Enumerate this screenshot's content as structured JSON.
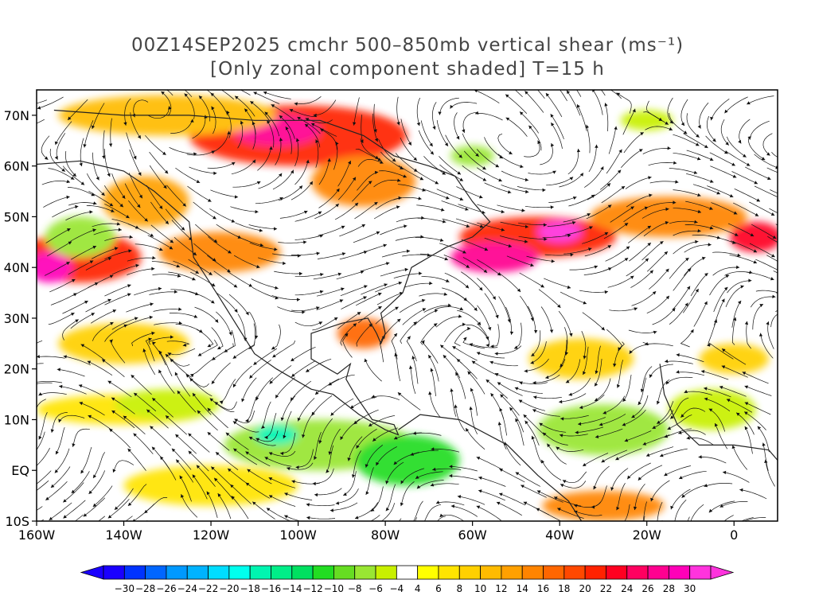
{
  "title_line1": "00Z14SEP2025 cmchr 500–850mb vertical shear (ms⁻¹)",
  "title_line2": "[Only zonal component shaded] T=15 h",
  "map": {
    "lon_range": [
      -160,
      10
    ],
    "lat_range": [
      -10,
      75
    ],
    "lat_labels": [
      {
        "v": 70,
        "t": "70N"
      },
      {
        "v": 60,
        "t": "60N"
      },
      {
        "v": 50,
        "t": "50N"
      },
      {
        "v": 40,
        "t": "40N"
      },
      {
        "v": 30,
        "t": "30N"
      },
      {
        "v": 20,
        "t": "20N"
      },
      {
        "v": 10,
        "t": "10N"
      },
      {
        "v": 0,
        "t": "EQ"
      },
      {
        "v": -10,
        "t": "10S"
      }
    ],
    "lon_labels": [
      {
        "v": -160,
        "t": "160W"
      },
      {
        "v": -140,
        "t": "140W"
      },
      {
        "v": -120,
        "t": "120W"
      },
      {
        "v": -100,
        "t": "100W"
      },
      {
        "v": -80,
        "t": "80W"
      },
      {
        "v": -60,
        "t": "60W"
      },
      {
        "v": -40,
        "t": "40W"
      },
      {
        "v": -20,
        "t": "20W"
      },
      {
        "v": 0,
        "t": "0"
      }
    ],
    "shear_regions": [
      {
        "lon": -100,
        "lat": 66,
        "rx": 25,
        "ry": 6,
        "u": 20
      },
      {
        "lon": -105,
        "lat": 67,
        "rx": 10,
        "ry": 3,
        "u": 26
      },
      {
        "lon": -130,
        "lat": 70,
        "rx": 25,
        "ry": 4,
        "u": 10
      },
      {
        "lon": -85,
        "lat": 57,
        "rx": 12,
        "ry": 5,
        "u": 14
      },
      {
        "lon": -150,
        "lat": 42,
        "rx": 14,
        "ry": 5,
        "u": 20
      },
      {
        "lon": -157,
        "lat": 40,
        "rx": 5,
        "ry": 3,
        "u": 28
      },
      {
        "lon": -135,
        "lat": 53,
        "rx": 10,
        "ry": 5,
        "u": 12
      },
      {
        "lon": -118,
        "lat": 43,
        "rx": 14,
        "ry": 4,
        "u": 14
      },
      {
        "lon": -45,
        "lat": 46,
        "rx": 18,
        "ry": 4,
        "u": 20
      },
      {
        "lon": -55,
        "lat": 42,
        "rx": 10,
        "ry": 3,
        "u": 26
      },
      {
        "lon": -40,
        "lat": 47,
        "rx": 5,
        "ry": 2,
        "u": 30
      },
      {
        "lon": -15,
        "lat": 50,
        "rx": 18,
        "ry": 4,
        "u": 14
      },
      {
        "lon": 5,
        "lat": 46,
        "rx": 6,
        "ry": 3,
        "u": 22
      },
      {
        "lon": -85,
        "lat": 27,
        "rx": 6,
        "ry": 3,
        "u": 16
      },
      {
        "lon": -140,
        "lat": 25,
        "rx": 15,
        "ry": 4,
        "u": 8
      },
      {
        "lon": -140,
        "lat": 12,
        "rx": 20,
        "ry": 3,
        "u": 6
      },
      {
        "lon": -35,
        "lat": 22,
        "rx": 12,
        "ry": 4,
        "u": 8
      },
      {
        "lon": -30,
        "lat": -7,
        "rx": 14,
        "ry": 3,
        "u": 14
      },
      {
        "lon": -120,
        "lat": -3,
        "rx": 20,
        "ry": 4,
        "u": 6
      },
      {
        "lon": 0,
        "lat": 22,
        "rx": 8,
        "ry": 3,
        "u": 8
      },
      {
        "lon": -95,
        "lat": 5,
        "rx": 22,
        "ry": 5,
        "u": -8
      },
      {
        "lon": -75,
        "lat": 2,
        "rx": 12,
        "ry": 5,
        "u": -12
      },
      {
        "lon": -105,
        "lat": 7,
        "rx": 5,
        "ry": 2,
        "u": -18
      },
      {
        "lon": -30,
        "lat": 8,
        "rx": 15,
        "ry": 5,
        "u": -8
      },
      {
        "lon": -5,
        "lat": 12,
        "rx": 10,
        "ry": 4,
        "u": -6
      },
      {
        "lon": -150,
        "lat": 46,
        "rx": 8,
        "ry": 4,
        "u": -8
      },
      {
        "lon": -130,
        "lat": 13,
        "rx": 12,
        "ry": 3,
        "u": -6
      },
      {
        "lon": -20,
        "lat": 69,
        "rx": 6,
        "ry": 2,
        "u": -6
      },
      {
        "lon": -60,
        "lat": 62,
        "rx": 5,
        "ry": 2,
        "u": -8
      }
    ],
    "colors": {
      "land": "#222222",
      "frame": "#000000",
      "streamline": "#111111"
    }
  },
  "colorbar": {
    "ticks": [
      -30,
      -28,
      -26,
      -24,
      -22,
      -20,
      -18,
      -16,
      -14,
      -12,
      -10,
      -8,
      -6,
      -4,
      4,
      6,
      8,
      10,
      12,
      14,
      16,
      18,
      20,
      22,
      24,
      26,
      28,
      30
    ],
    "colors": [
      "#1a00ff",
      "#0033ff",
      "#0066ff",
      "#0099ff",
      "#00b3ff",
      "#00ddff",
      "#00ffee",
      "#00f5b0",
      "#00ee88",
      "#00e060",
      "#22dd22",
      "#66dd22",
      "#99e633",
      "#c8f000",
      "#ffffff",
      "#ffff00",
      "#ffe400",
      "#ffd000",
      "#ffbb00",
      "#ffa000",
      "#ff8400",
      "#ff6600",
      "#ff4800",
      "#ff2200",
      "#ff0020",
      "#ff0060",
      "#ff0090",
      "#ff00b8",
      "#ff33dd"
    ]
  }
}
